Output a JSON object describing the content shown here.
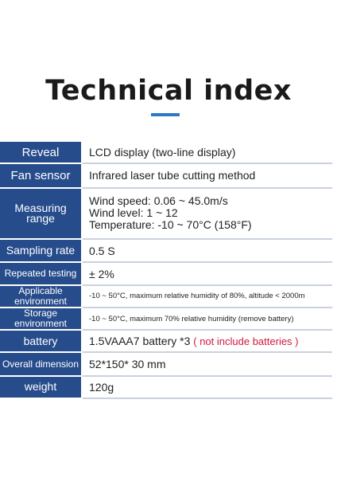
{
  "page_title": "Technical index",
  "accent_color": "#2f78c8",
  "label_color": "#264c8c",
  "note_color": "#d1173a",
  "specs": [
    {
      "label": "Reveal",
      "value": "LCD display (two-line display)"
    },
    {
      "label": "Fan sensor",
      "value": "Infrared laser tube cutting method"
    },
    {
      "label": "Measuring range",
      "lines": [
        "Wind speed: 0.06 ~ 45.0m/s",
        "Wind level: 1 ~ 12",
        "Temperature: -10 ~ 70°C (158°F)"
      ]
    },
    {
      "label": "Sampling rate",
      "value": "0.5 S"
    },
    {
      "label": "Repeated testing",
      "value": "± 2%"
    },
    {
      "label": "Applicable environment",
      "value": "-10 ~ 50°C, maximum relative humidity of 80%, altitude < 2000m"
    },
    {
      "label": "Storage environment",
      "value": "-10 ~ 50°C, maximum 70% relative humidity (remove battery)"
    },
    {
      "label": "battery",
      "value": "1.5VAAA7 battery *3",
      "note": "( not include batteries )"
    },
    {
      "label": "Overall dimension",
      "value": "52*150* 30 mm"
    },
    {
      "label": "weight",
      "value": "120g"
    }
  ]
}
